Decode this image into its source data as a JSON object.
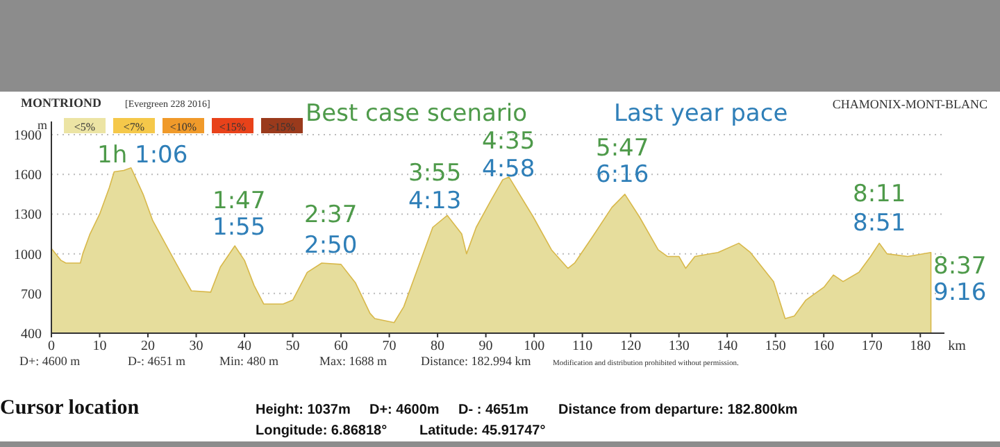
{
  "chart_data": {
    "type": "area",
    "ylabel": "m",
    "xlabel": "km",
    "color": "#e6dd9c",
    "x": [
      0,
      2,
      3,
      6,
      6.5,
      8,
      10,
      12,
      13,
      15,
      16.5,
      19,
      21,
      24,
      27,
      29,
      33,
      35,
      38,
      40,
      42,
      44,
      48,
      50,
      53,
      56,
      60,
      63,
      66,
      67,
      71,
      73,
      76,
      79,
      82,
      85,
      86,
      88,
      91,
      93.5,
      94.8,
      99.8,
      103.6,
      107,
      108.4,
      112.3,
      116.1,
      118.8,
      121.8,
      125.7,
      127.6,
      130,
      131.4,
      133.3,
      138.1,
      142.4,
      144.8,
      149.6,
      152,
      153.9,
      156.3,
      160.1,
      162,
      164,
      167.3,
      169.7,
      171.5,
      173.1,
      177.4,
      182.2
    ],
    "values": [
      1040,
      950,
      930,
      930,
      1000,
      1150,
      1300,
      1500,
      1620,
      1630,
      1650,
      1450,
      1250,
      1050,
      850,
      720,
      710,
      900,
      1060,
      950,
      760,
      620,
      620,
      650,
      860,
      930,
      920,
      780,
      550,
      510,
      480,
      600,
      900,
      1200,
      1290,
      1150,
      1000,
      1200,
      1400,
      1560,
      1580,
      1280,
      1030,
      890,
      930,
      1140,
      1350,
      1450,
      1280,
      1030,
      980,
      980,
      890,
      980,
      1010,
      1080,
      1010,
      790,
      510,
      530,
      650,
      750,
      840,
      790,
      860,
      980,
      1080,
      1000,
      980,
      1010
    ],
    "xlim": [
      0,
      185
    ],
    "ylim": [
      400,
      2000
    ],
    "xticks": [
      0,
      10,
      20,
      30,
      40,
      50,
      60,
      70,
      80,
      90,
      100,
      110,
      120,
      130,
      140,
      150,
      160,
      170,
      180
    ],
    "yticks": [
      400,
      700,
      1000,
      1300,
      1600,
      1900
    ],
    "grid": "y",
    "annotations": [
      "MONTRIOND",
      "[Evergreen 228 2016]",
      "CHAMONIX-MONT-BLANC",
      "Best case scenario",
      "Last year pace",
      "<5%",
      "<7%",
      "<10%",
      "<15%",
      ">15%",
      "D+: 4600 m",
      "D-: 4651 m",
      "Min: 480 m",
      "Max: 1688 m",
      "Distance: 182.994 km",
      "Modification and distribution prohibited without permission.",
      "Cursor location",
      "Height: 1037m",
      "D+: 4600m",
      "D- : 4651m",
      "Distance from departure: 182.800km",
      "Longitude: 6.86818°",
      "Latitude: 45.91747°",
      "1h",
      "1:06",
      "1:47",
      "1:55",
      "2:37",
      "2:50",
      "3:55",
      "4:13",
      "4:35",
      "4:58",
      "5:47",
      "6:16",
      "8:11",
      "8:51",
      "8:37",
      "9:16"
    ]
  }
}
